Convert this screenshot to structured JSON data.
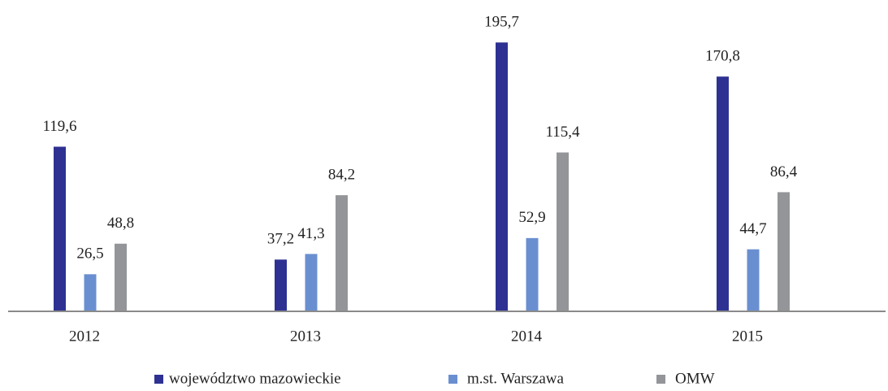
{
  "chart_data": {
    "type": "bar",
    "categories": [
      "2012",
      "2013",
      "2014",
      "2015"
    ],
    "series": [
      {
        "name": "województwo mazowieckie",
        "color": "#2e3192",
        "values": [
          119.6,
          37.2,
          195.7,
          170.8
        ],
        "value_labels": [
          "119,6",
          "37,2",
          "195,7",
          "170,8"
        ]
      },
      {
        "name": "m.st. Warszawa",
        "color": "#6a8fd0",
        "values": [
          26.5,
          41.3,
          52.9,
          44.7
        ],
        "value_labels": [
          "26,5",
          "41,3",
          "52,9",
          "44,7"
        ]
      },
      {
        "name": "OMW",
        "color": "#939598",
        "values": [
          48.8,
          84.2,
          115.4,
          86.4
        ],
        "value_labels": [
          "48,8",
          "84,2",
          "115,4",
          "86,4"
        ]
      }
    ],
    "ylim": [
      0,
      200
    ],
    "legend": "bottom"
  }
}
